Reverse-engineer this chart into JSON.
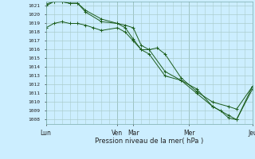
{
  "background_color": "#cceeff",
  "grid_color": "#aacccc",
  "line_color": "#1a5c1a",
  "xlabel": "Pression niveau de la mer( hPa )",
  "ylim": [
    1007.5,
    1021.5
  ],
  "xlim": [
    0,
    13
  ],
  "x_day_labels": [
    "Lun",
    "Ven",
    "Mar",
    "Mer",
    "Jeu"
  ],
  "x_day_positions": [
    0,
    4.5,
    5.5,
    9,
    13
  ],
  "series1_x": [
    0,
    0.5,
    1.0,
    1.5,
    2.0,
    2.5,
    3.0,
    3.5,
    4.5,
    5.0,
    5.5,
    6.0,
    6.5,
    7.5,
    8.5,
    9.5,
    10.5,
    11.5,
    12.0,
    13.0
  ],
  "series1": [
    1018.5,
    1019.0,
    1019.2,
    1019.0,
    1019.0,
    1018.8,
    1018.5,
    1018.2,
    1018.5,
    1018.0,
    1017.0,
    1016.0,
    1015.5,
    1013.0,
    1012.5,
    1011.0,
    1009.5,
    1008.5,
    1008.0,
    1011.5
  ],
  "series2_x": [
    0,
    0.5,
    1.0,
    1.5,
    2.0,
    2.5,
    3.5,
    4.5,
    5.0,
    5.5,
    6.0,
    6.5,
    7.0,
    7.5,
    8.5,
    9.5,
    10.5,
    11.5,
    12.0,
    13.0
  ],
  "series2": [
    1021.0,
    1021.5,
    1021.5,
    1021.3,
    1021.3,
    1020.5,
    1019.5,
    1019.0,
    1018.8,
    1018.5,
    1016.5,
    1016.0,
    1016.2,
    1015.5,
    1012.8,
    1011.2,
    1010.0,
    1009.5,
    1009.2,
    1011.8
  ],
  "series3_x": [
    0,
    0.5,
    1.0,
    1.5,
    2.0,
    2.5,
    3.5,
    4.5,
    5.0,
    5.5,
    6.0,
    6.5,
    7.5,
    8.5,
    9.5,
    10.5,
    11.0,
    11.5,
    12.0,
    13.0
  ],
  "series3": [
    1021.2,
    1021.5,
    1021.5,
    1021.3,
    1021.3,
    1020.3,
    1019.2,
    1019.0,
    1018.5,
    1017.2,
    1016.0,
    1016.0,
    1013.5,
    1012.5,
    1011.5,
    1009.5,
    1009.0,
    1008.2,
    1008.0,
    1011.8
  ]
}
